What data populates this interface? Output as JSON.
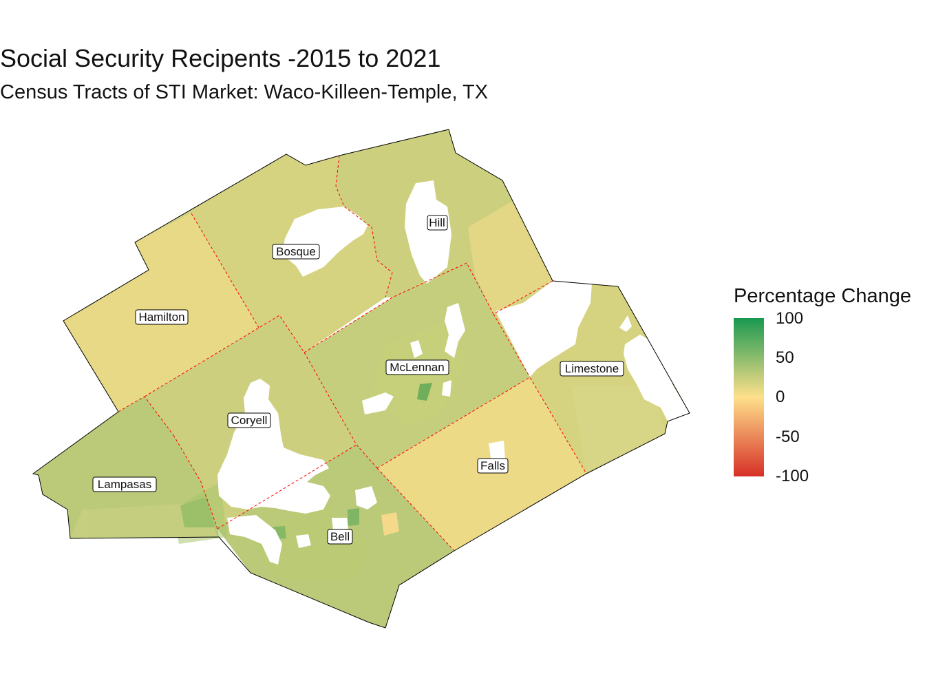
{
  "title": "Social Security Recipents -2015 to 2021",
  "subtitle": "Census Tracts of STI Market: Waco-Killeen-Temple, TX",
  "legend": {
    "title": "Percentage Change",
    "min": -100,
    "max": 100,
    "ticks": [
      "100",
      "50",
      "0",
      "-50",
      "-100"
    ],
    "colors": {
      "high": "#1a9850",
      "mid": "#fee08b",
      "low": "#d73027"
    }
  },
  "counties": [
    {
      "name": "Hamilton",
      "value": 10
    },
    {
      "name": "Bosque",
      "value": 18
    },
    {
      "name": "Hill",
      "value": 22
    },
    {
      "name": "Coryell",
      "value": 22
    },
    {
      "name": "McLennan",
      "value": 25
    },
    {
      "name": "Limestone",
      "value": 18
    },
    {
      "name": "Lampasas",
      "value": 30
    },
    {
      "name": "Falls",
      "value": 8
    },
    {
      "name": "Bell",
      "value": 30
    }
  ]
}
